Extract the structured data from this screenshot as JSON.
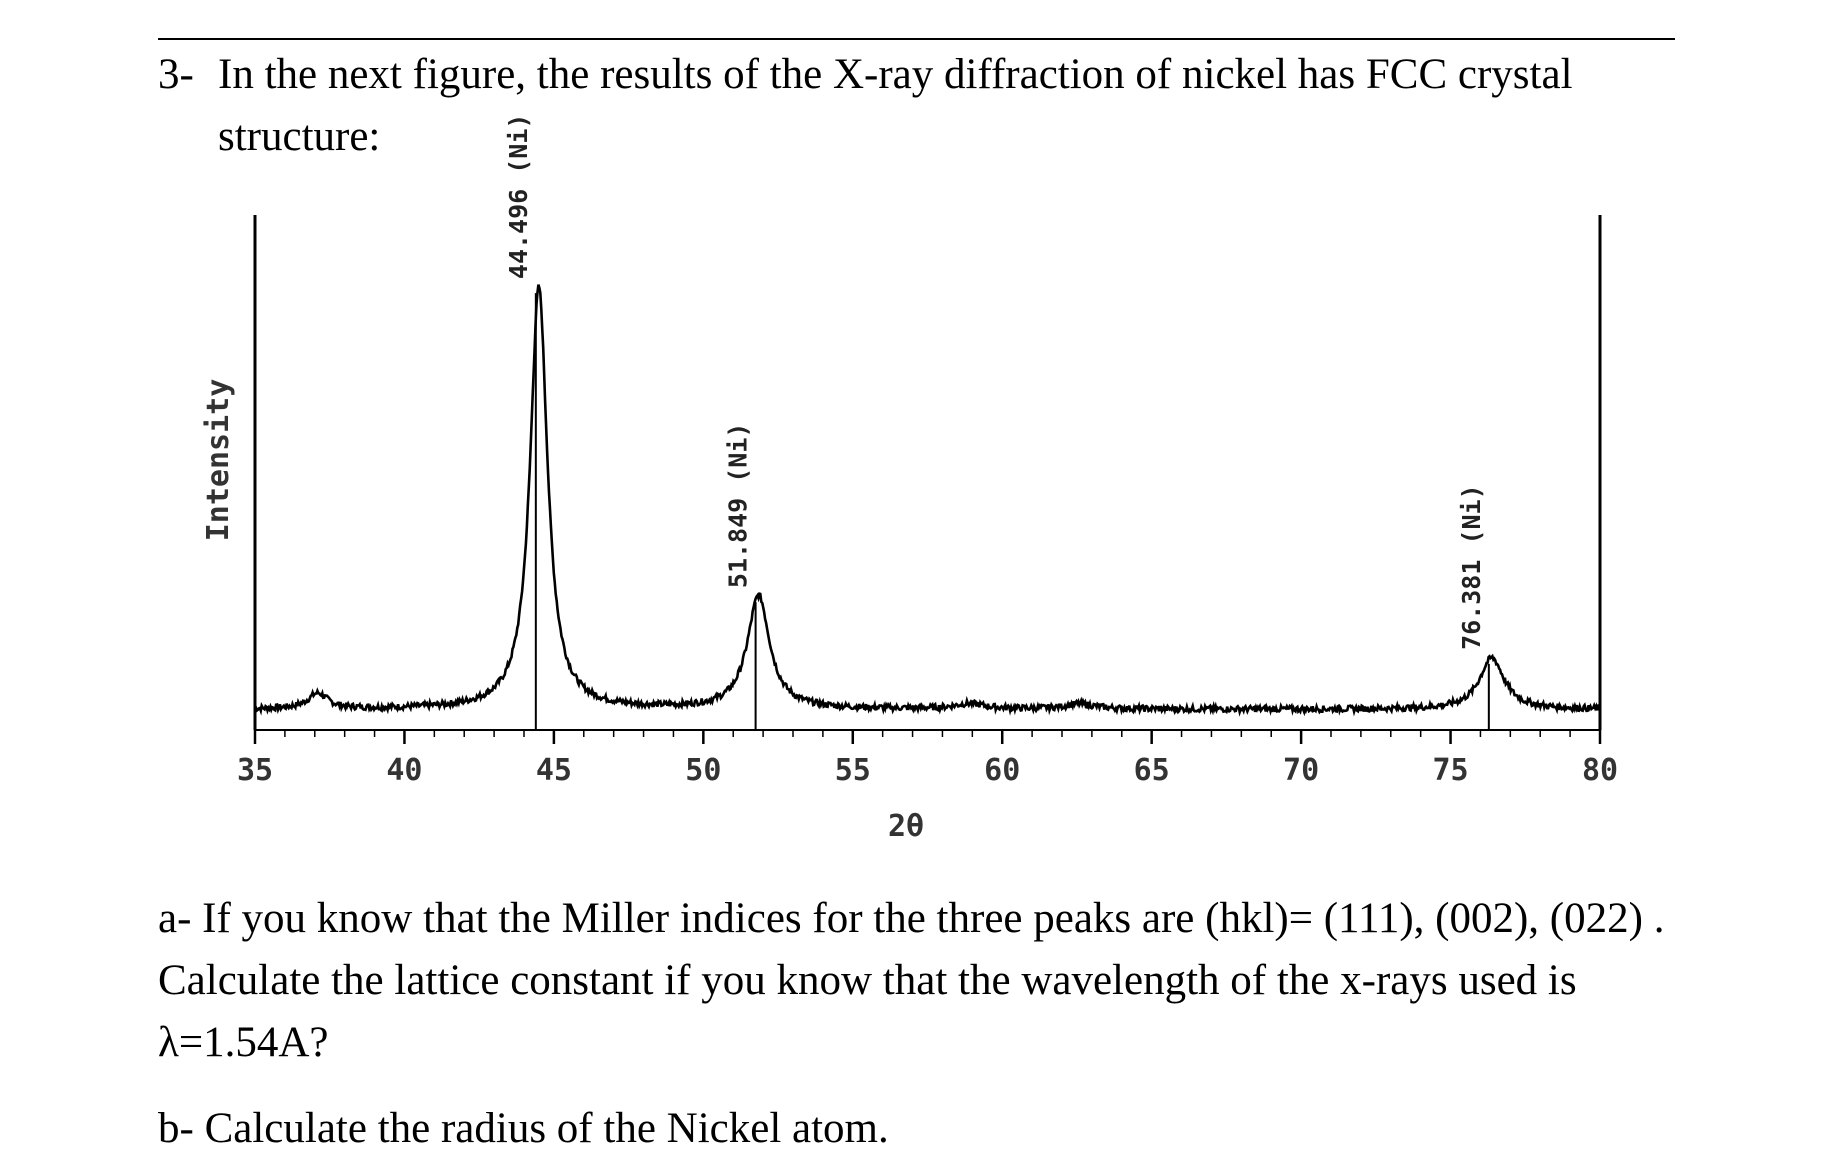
{
  "question": {
    "number": "3-",
    "text": "In the next figure, the results of the X-ray diffraction of nickel has FCC crystal structure:"
  },
  "part_a": {
    "label": "a-",
    "text": "If you know that the Miller indices for the three peaks are (hkl)= (111), (002), (022) . Calculate the lattice constant if you know that the wavelength of the x-rays used is λ=1.54A?"
  },
  "part_b": {
    "label": "b-",
    "text": "Calculate the radius of the Nickel atom."
  },
  "chart_data": {
    "type": "line",
    "title": "",
    "xlabel": "2θ",
    "ylabel": "Intensity",
    "xlim": [
      35,
      80
    ],
    "ylim": [
      0,
      1
    ],
    "x_ticks": [
      35,
      40,
      45,
      50,
      55,
      60,
      65,
      70,
      75,
      80
    ],
    "grid": false,
    "y_tick_labels": false,
    "series": [
      {
        "color": "#000000",
        "peaks": [
          {
            "x": 37.1,
            "height": 0.03,
            "width": 0.4
          },
          {
            "x": 44.496,
            "height": 0.82,
            "width": 0.35
          },
          {
            "x": 51.849,
            "height": 0.22,
            "width": 0.45
          },
          {
            "x": 58.9,
            "height": 0.01,
            "width": 0.6
          },
          {
            "x": 62.6,
            "height": 0.01,
            "width": 0.6
          },
          {
            "x": 76.381,
            "height": 0.1,
            "width": 0.5
          }
        ],
        "baseline": 0.04
      }
    ],
    "peak_labels": [
      {
        "x": 44.496,
        "label": "44.496 (Ni)"
      },
      {
        "x": 51.849,
        "label": "51.849 (Ni)"
      },
      {
        "x": 76.381,
        "label": "76.381 (Ni)"
      }
    ]
  }
}
